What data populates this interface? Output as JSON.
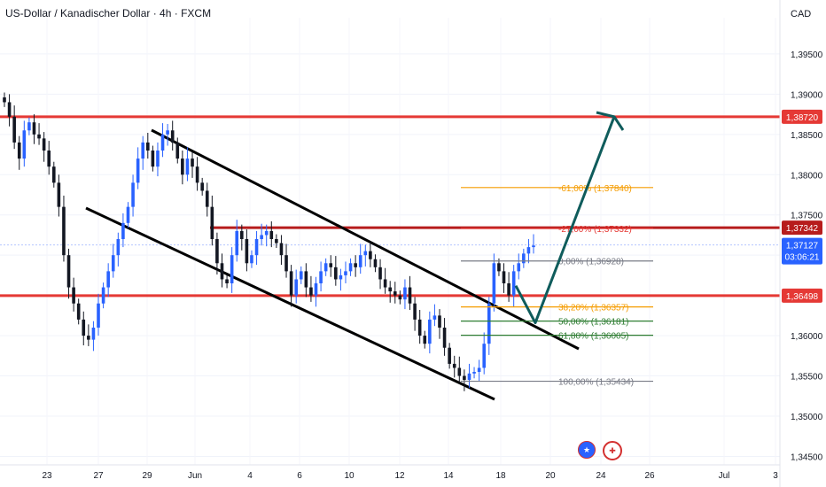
{
  "header": {
    "title": "US-Dollar / Kanadischer Dollar · 4h · FXCM"
  },
  "price_axis": {
    "currency": "CAD"
  },
  "icons": {
    "flag_us": "us-flag-icon",
    "flag_ca": "ca-flag-icon"
  },
  "colors": {
    "bull": "#2962ff",
    "bear": "#131722",
    "level_line": "#e53935",
    "level_dark": "#b71c1c",
    "channel": "#000000",
    "arrow": "#0f5c5c",
    "fib_orange": "#f59c00",
    "fib_green": "#2e7d32",
    "fib_gray": "#787b86",
    "fib_red": "#e53935",
    "current_price": "#2962ff"
  },
  "chart_data": {
    "type": "candlestick",
    "symbol": "US-Dollar / Kanadischer Dollar",
    "timeframe": "4h",
    "source": "FXCM",
    "currency": "CAD",
    "ylim": [
      1.3445,
      1.3995
    ],
    "y_ticks": [
      "1,34500",
      "1,35000",
      "1,35500",
      "1,36000",
      "1,36500",
      "1,37000",
      "1,37500",
      "1,38000",
      "1,38500",
      "1,39000",
      "1,39500"
    ],
    "x_ticks": [
      "23",
      "27",
      "29",
      "Jun",
      "4",
      "6",
      "10",
      "12",
      "14",
      "18",
      "20",
      "24",
      "26",
      "Jul",
      "3"
    ],
    "candle_closes": [
      1.389,
      1.3872,
      1.384,
      1.382,
      1.3855,
      1.3865,
      1.385,
      1.3845,
      1.383,
      1.381,
      1.379,
      1.376,
      1.37,
      1.366,
      1.364,
      1.362,
      1.36,
      1.3595,
      1.361,
      1.364,
      1.366,
      1.368,
      1.37,
      1.372,
      1.374,
      1.376,
      1.379,
      1.382,
      1.384,
      1.383,
      1.381,
      1.383,
      1.385,
      1.3855,
      1.384,
      1.382,
      1.38,
      1.382,
      1.381,
      1.379,
      1.378,
      1.376,
      1.372,
      1.369,
      1.367,
      1.3665,
      1.37,
      1.373,
      1.372,
      1.369,
      1.37,
      1.372,
      1.3725,
      1.373,
      1.372,
      1.3715,
      1.37,
      1.368,
      1.365,
      1.367,
      1.368,
      1.366,
      1.365,
      1.3665,
      1.368,
      1.369,
      1.3685,
      1.367,
      1.3675,
      1.368,
      1.369,
      1.3685,
      1.37,
      1.3705,
      1.3695,
      1.3685,
      1.367,
      1.366,
      1.3655,
      1.365,
      1.3645,
      1.366,
      1.364,
      1.362,
      1.36,
      1.359,
      1.362,
      1.3625,
      1.361,
      1.3585,
      1.3565,
      1.356,
      1.355,
      1.3545,
      1.3553,
      1.3555,
      1.356,
      1.359,
      1.364,
      1.369,
      1.368,
      1.3665,
      1.365,
      1.368,
      1.369,
      1.3702,
      1.371,
      1.3712
    ],
    "annotations": {
      "horizontal_levels": [
        {
          "label": "1,38720",
          "value": 1.3872
        },
        {
          "label": "1,37342",
          "value": 1.37342
        },
        {
          "label": "1,36498",
          "value": 1.36498
        }
      ],
      "current_price": {
        "label": "1,37127",
        "value": 1.37127,
        "countdown": "03:06:21"
      },
      "descending_channel": {
        "upper": [
          {
            "date": "29",
            "value": 1.384
          },
          {
            "date": "20",
            "value": 1.359
          }
        ],
        "lower": [
          {
            "date": "27",
            "value": 1.3755
          },
          {
            "date": "18",
            "value": 1.3525
          }
        ]
      },
      "fibonacci": [
        {
          "label": "-61,00% (1,37840)",
          "value": 1.3784
        },
        {
          "label": "-27,00% (1,37332)",
          "value": 1.37332
        },
        {
          "label": "0,00% (1,36928)",
          "value": 1.36928
        },
        {
          "label": "38,20% (1,36357)",
          "value": 1.36357
        },
        {
          "label": "50,00% (1,36181)",
          "value": 1.36181
        },
        {
          "label": "61,80% (1,36005)",
          "value": 1.36005
        },
        {
          "label": "100,00% (1,35434)",
          "value": 1.35434
        }
      ],
      "projection_path": [
        1.3662,
        1.3616,
        1.3872
      ]
    }
  }
}
